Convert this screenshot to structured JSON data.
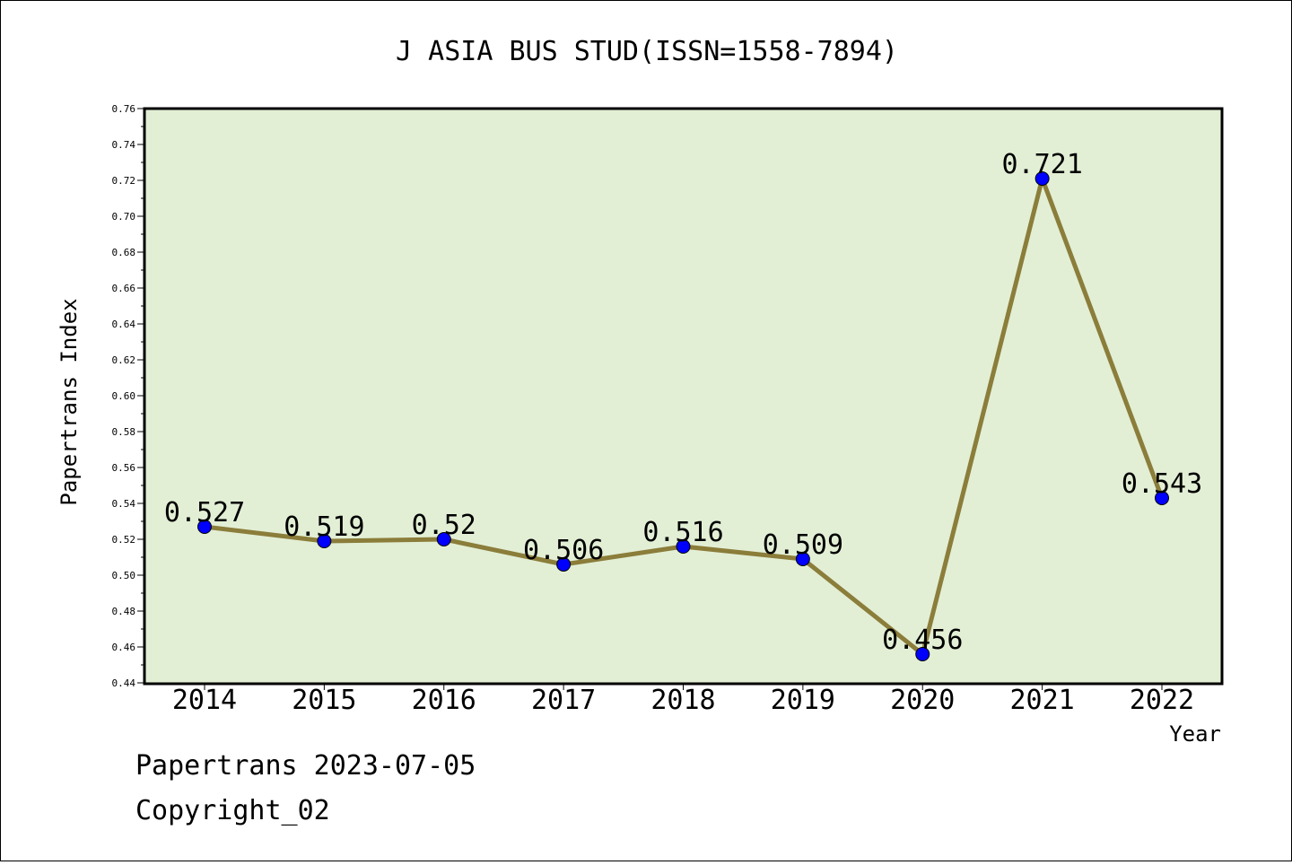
{
  "chart_data": {
    "type": "line",
    "title": "J ASIA BUS STUD(ISSN=1558-7894)",
    "xlabel": "Year",
    "ylabel": "Papertrans Index",
    "categories": [
      "2014",
      "2015",
      "2016",
      "2017",
      "2018",
      "2019",
      "2020",
      "2021",
      "2022"
    ],
    "values": [
      0.527,
      0.519,
      0.52,
      0.506,
      0.516,
      0.509,
      0.456,
      0.721,
      0.543
    ],
    "data_labels": [
      "0.527",
      "0.519",
      "0.52",
      "0.506",
      "0.516",
      "0.509",
      "0.456",
      "0.721",
      "0.543"
    ],
    "ylim": [
      0.44,
      0.76
    ],
    "yticks": [
      "0.44",
      "0.46",
      "0.48",
      "0.50",
      "0.52",
      "0.54",
      "0.56",
      "0.58",
      "0.60",
      "0.62",
      "0.64",
      "0.66",
      "0.68",
      "0.70",
      "0.72",
      "0.74",
      "0.76"
    ],
    "grid": false,
    "colors": {
      "plot_background": "#e2efd5",
      "line": "#8b7d3a",
      "marker": "#0000ff"
    }
  },
  "footer": {
    "line1": "Papertrans 2023-07-05",
    "line2": "Copyright_02"
  }
}
